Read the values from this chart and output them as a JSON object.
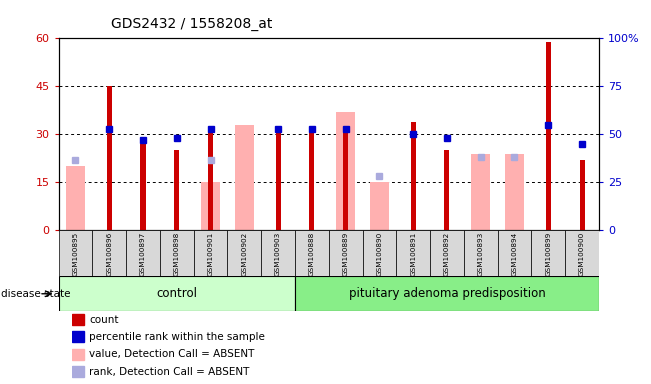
{
  "title": "GDS2432 / 1558208_at",
  "samples": [
    "GSM100895",
    "GSM100896",
    "GSM100897",
    "GSM100898",
    "GSM100901",
    "GSM100902",
    "GSM100903",
    "GSM100888",
    "GSM100889",
    "GSM100890",
    "GSM100891",
    "GSM100892",
    "GSM100893",
    "GSM100894",
    "GSM100899",
    "GSM100900"
  ],
  "count": [
    0,
    45,
    27,
    25,
    32,
    0,
    32,
    32,
    32,
    0,
    34,
    25,
    0,
    0,
    59,
    22
  ],
  "percentile": [
    null,
    53,
    47,
    48,
    53,
    null,
    53,
    53,
    53,
    null,
    50,
    48,
    null,
    null,
    55,
    45
  ],
  "value_absent": [
    20,
    0,
    0,
    0,
    15,
    33,
    0,
    0,
    37,
    15,
    0,
    0,
    24,
    24,
    0,
    0
  ],
  "rank_absent": [
    22,
    null,
    null,
    null,
    22,
    null,
    null,
    null,
    null,
    17,
    null,
    null,
    23,
    23,
    null,
    null
  ],
  "control_count": 7,
  "ylim_left": [
    0,
    60
  ],
  "ylim_right": [
    0,
    100
  ],
  "yticks_left": [
    0,
    15,
    30,
    45,
    60
  ],
  "yticks_right": [
    0,
    25,
    50,
    75,
    100
  ],
  "control_label": "control",
  "disease_label": "pituitary adenoma predisposition",
  "disease_state_label": "disease state",
  "bar_color_dark_red": "#cc0000",
  "bar_color_dark_blue": "#0000cc",
  "bar_color_light_pink": "#ffb0b0",
  "bar_color_light_blue": "#aaaadd",
  "bg_plot": "#ffffff",
  "bg_xticklabels": "#d8d8d8",
  "bg_control": "#ccffcc",
  "bg_disease": "#88ee88"
}
